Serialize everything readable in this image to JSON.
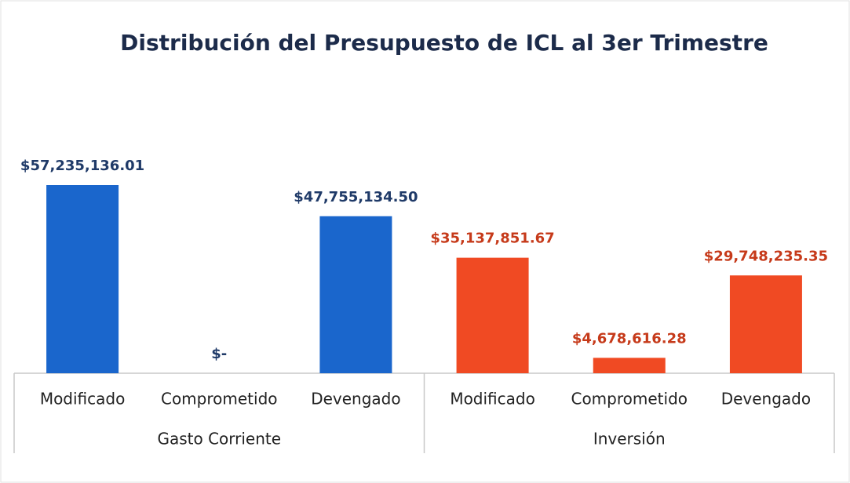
{
  "chart_data": {
    "type": "bar",
    "title": "Distribución del Presupuesto de ICL al 3er Trimestre",
    "groups": [
      {
        "name": "Gasto Corriente",
        "color": "#1a66cc",
        "label_color": "#1f3a68",
        "categories": [
          "Modificado",
          "Comprometido",
          "Devengado"
        ],
        "values": [
          57235136.01,
          0,
          47755134.5
        ],
        "value_labels": [
          "$57,235,136.01",
          "$-",
          "$47,755,134.50"
        ]
      },
      {
        "name": "Inversión",
        "color": "#f04a23",
        "label_color": "#c63a1a",
        "categories": [
          "Modificado",
          "Comprometido",
          "Devengado"
        ],
        "values": [
          35137851.67,
          4678616.28,
          29748235.35
        ],
        "value_labels": [
          "$35,137,851.67",
          "$4,678,616.28",
          "$29,748,235.35"
        ]
      }
    ]
  }
}
